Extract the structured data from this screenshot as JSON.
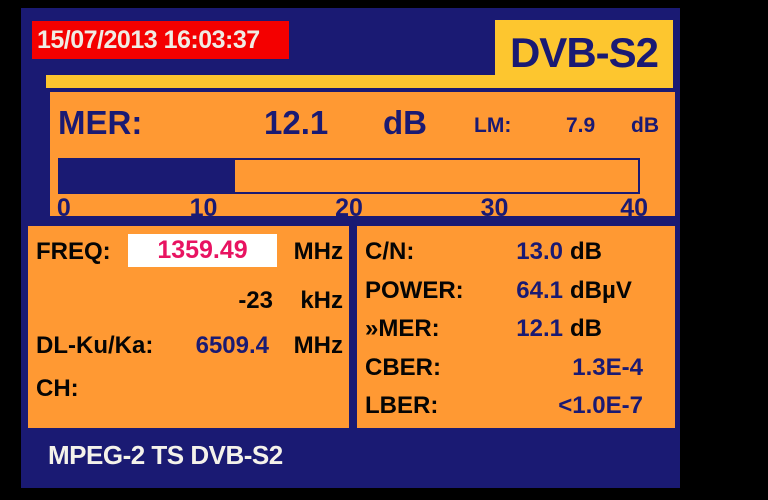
{
  "header": {
    "datetime": "15/07/2013 16:03:37",
    "standard": "DVB-S2"
  },
  "mer_panel": {
    "label": "MER:",
    "value": "12.1",
    "unit": "dB",
    "lm_label": "LM:",
    "lm_value": "7.9",
    "lm_unit": "dB",
    "bar": {
      "min": 0,
      "max": 40,
      "value": 12.1
    },
    "ticks": [
      "0",
      "10",
      "20",
      "30",
      "40"
    ]
  },
  "tuning_panel": {
    "freq_label": "FREQ:",
    "freq_value": "1359.49",
    "freq_unit": "MHz",
    "offset_value": "-23",
    "offset_unit": "kHz",
    "dl_label": "DL-Ku/Ka:",
    "dl_value": "6509.4",
    "dl_unit": "MHz",
    "ch_label": "CH:"
  },
  "measure_panel": {
    "rows": [
      {
        "label": "C/N:",
        "value": "13.0",
        "unit": "dB"
      },
      {
        "label": "POWER:",
        "value": "64.1",
        "unit": "dBµV"
      },
      {
        "label": "»MER:",
        "value": "12.1",
        "unit": "dB"
      },
      {
        "label": "CBER:",
        "value": "1.3E-4",
        "unit": ""
      },
      {
        "label": "LBER:",
        "value": "<1.0E-7",
        "unit": ""
      }
    ]
  },
  "footer": {
    "text": "MPEG-2 TS DVB-S2"
  },
  "colors": {
    "screen_navy": "#1a1a73",
    "panel_orange": "#ff9933",
    "badge_yellow": "#fdc62f",
    "datetime_red": "#f40000",
    "freq_value_crimson": "#e81361",
    "label_black": "#050505",
    "text_white": "#f4f2ea"
  }
}
